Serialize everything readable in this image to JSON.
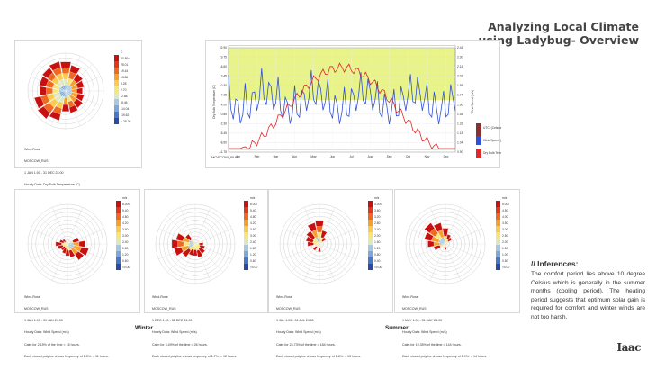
{
  "title_line1": "Analyzing Local Climate",
  "title_line2": "using Ladybug- Overview",
  "inferences": {
    "heading": "// Inferences:",
    "body": "The comfort period lies above 10 degree Celsius which is generally in the summer months (cooling period). The heating period suggests that optimum solar gain is required for comfort and winter winds are not too harsh."
  },
  "season_winter": "Winter",
  "season_summer": "Summer",
  "logo": "Iaac",
  "temp_rose": {
    "legend_unit": "C",
    "legend_labels": [
      "30.80<",
      "25.01",
      "19.44",
      "13.86",
      "8.28",
      "2.70",
      "-2.88",
      "-8.46",
      "-14.04",
      "-19.62",
      "<-25.20"
    ],
    "caption": [
      "Wind-Rose",
      "MOSCOW_RUS",
      "1 JAN 1:00 - 31 DEC 24:00",
      "Hourly Data: Dry Bulb Temperature (C)",
      "Calm for 12.10% of the time = 1060 hours.",
      "Each closed polyline shows frequency of 1.0%. = 84 hours."
    ]
  },
  "line_chart": {
    "ylabel_left": "Dry Bulb Temperature (C)",
    "ylabel_right": "Wind Speed (m/s)",
    "caption": "MOSCOW_RUS",
    "months": [
      "Jan",
      "Feb",
      "Mar",
      "Apr",
      "May",
      "Jun",
      "Jul",
      "Aug",
      "Sep",
      "Oct",
      "Nov",
      "Dec"
    ],
    "left_ticks": [
      "22.90",
      "19.75",
      "16.60",
      "13.45",
      "10.30",
      "7.15",
      "4.00",
      "0.85",
      "-2.30",
      "-5.45",
      "-8.60",
      "-11.75"
    ],
    "right_ticks": [
      "2.44",
      "2.30",
      "2.16",
      "2.02",
      "1.88",
      "1.74",
      "1.60",
      "1.46",
      "1.32",
      "1.18",
      "1.04",
      "0.90"
    ],
    "legend": [
      {
        "label": "UTCI (Celsius)",
        "color": "#8a3030"
      },
      {
        "label": "Wind Speed (Hourly Average)",
        "color": "#3050d8"
      },
      {
        "label": "Dry Bulb Temperature (Hourly Average)",
        "color": "#e02828"
      }
    ]
  },
  "wind_rose_1": {
    "legend_unit": "m/s",
    "legend_labels": [
      "6.00<",
      "5.40",
      "4.80",
      "4.20",
      "3.60",
      "3.00",
      "2.40",
      "1.80",
      "1.20",
      "0.60",
      "<0.00"
    ],
    "caption": [
      "Wind-Rose",
      "MOSCOW_RUS",
      "1 JAN 1:00 - 31 JAN 24:00",
      "Hourly Data: Wind Speed (m/s)",
      "Calm for 2.15% of the time = 16 hours.",
      "Each closed polyline shows frequency of 1.5%. = 11 hours."
    ]
  },
  "wind_rose_2": {
    "legend_unit": "m/s",
    "legend_labels": [
      "6.00<",
      "5.40",
      "4.80",
      "4.20",
      "3.60",
      "3.00",
      "2.40",
      "1.80",
      "1.20",
      "0.60",
      "<0.00"
    ],
    "caption": [
      "Wind-Rose",
      "MOSCOW_RUS",
      "1 DEC 1:00 - 31 DEC 24:00",
      "Hourly Data: Wind Speed (m/s)",
      "Calm for 3.49% of the time = 26 hours.",
      "Each closed polyline shows frequency of 1.7%. = 12 hours."
    ]
  },
  "wind_rose_3": {
    "legend_unit": "m/s",
    "legend_labels": [
      "4.00<",
      "3.60",
      "3.20",
      "2.80",
      "2.40",
      "2.00",
      "1.60",
      "1.20",
      "0.80",
      "0.40",
      "<0.00"
    ],
    "caption": [
      "Wind-Rose",
      "MOSCOW_RUS",
      "1 JUL 1:00 - 31 JUL 24:00",
      "Hourly Data: Wind Speed (m/s)",
      "Calm for 24.73% of the time = 184 hours.",
      "Each closed polyline shows frequency of 1.8%. = 13 hours."
    ]
  },
  "wind_rose_4": {
    "legend_unit": "m/s",
    "legend_labels": [
      "5.00<",
      "4.50",
      "4.00",
      "3.50",
      "3.00",
      "2.50",
      "2.00",
      "1.50",
      "1.00",
      "0.50",
      "<0.00"
    ],
    "caption": [
      "Wind-Rose",
      "MOSCOW_RUS",
      "1 MAY 1:00 - 31 MAY 24:00",
      "Hourly Data: Wind Speed (m/s)",
      "Calm for 19.35% of the time = 144 hours.",
      "Each closed polyline shows frequency of 1.9%. = 14 hours."
    ]
  }
}
